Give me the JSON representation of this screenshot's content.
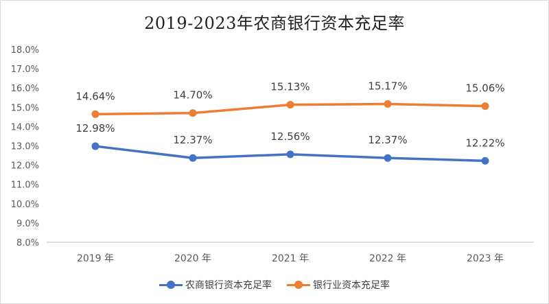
{
  "chart_data": {
    "type": "line",
    "title": "2019-2023年农商银行资本充足率",
    "categories": [
      "2019 年",
      "2020 年",
      "2021 年",
      "2022 年",
      "2023 年"
    ],
    "series": [
      {
        "name": "农商银行资本充足率",
        "values": [
          12.98,
          12.37,
          12.56,
          12.37,
          12.22
        ],
        "labels": [
          "12.98%",
          "12.37%",
          "12.56%",
          "12.37%",
          "12.22%"
        ],
        "color": "#4472c4"
      },
      {
        "name": "银行业资本充足率",
        "values": [
          14.64,
          14.7,
          15.13,
          15.17,
          15.06
        ],
        "labels": [
          "14.64%",
          "14.70%",
          "15.13%",
          "15.17%",
          "15.06%"
        ],
        "color": "#ed7d31"
      }
    ],
    "ylim": [
      8.0,
      18.0
    ],
    "yticks": [
      "8.0%",
      "9.0%",
      "10.0%",
      "11.0%",
      "12.0%",
      "13.0%",
      "14.0%",
      "15.0%",
      "16.0%",
      "17.0%",
      "18.0%"
    ],
    "grid": false,
    "legend": "bottom",
    "xlabel": "",
    "ylabel": ""
  }
}
